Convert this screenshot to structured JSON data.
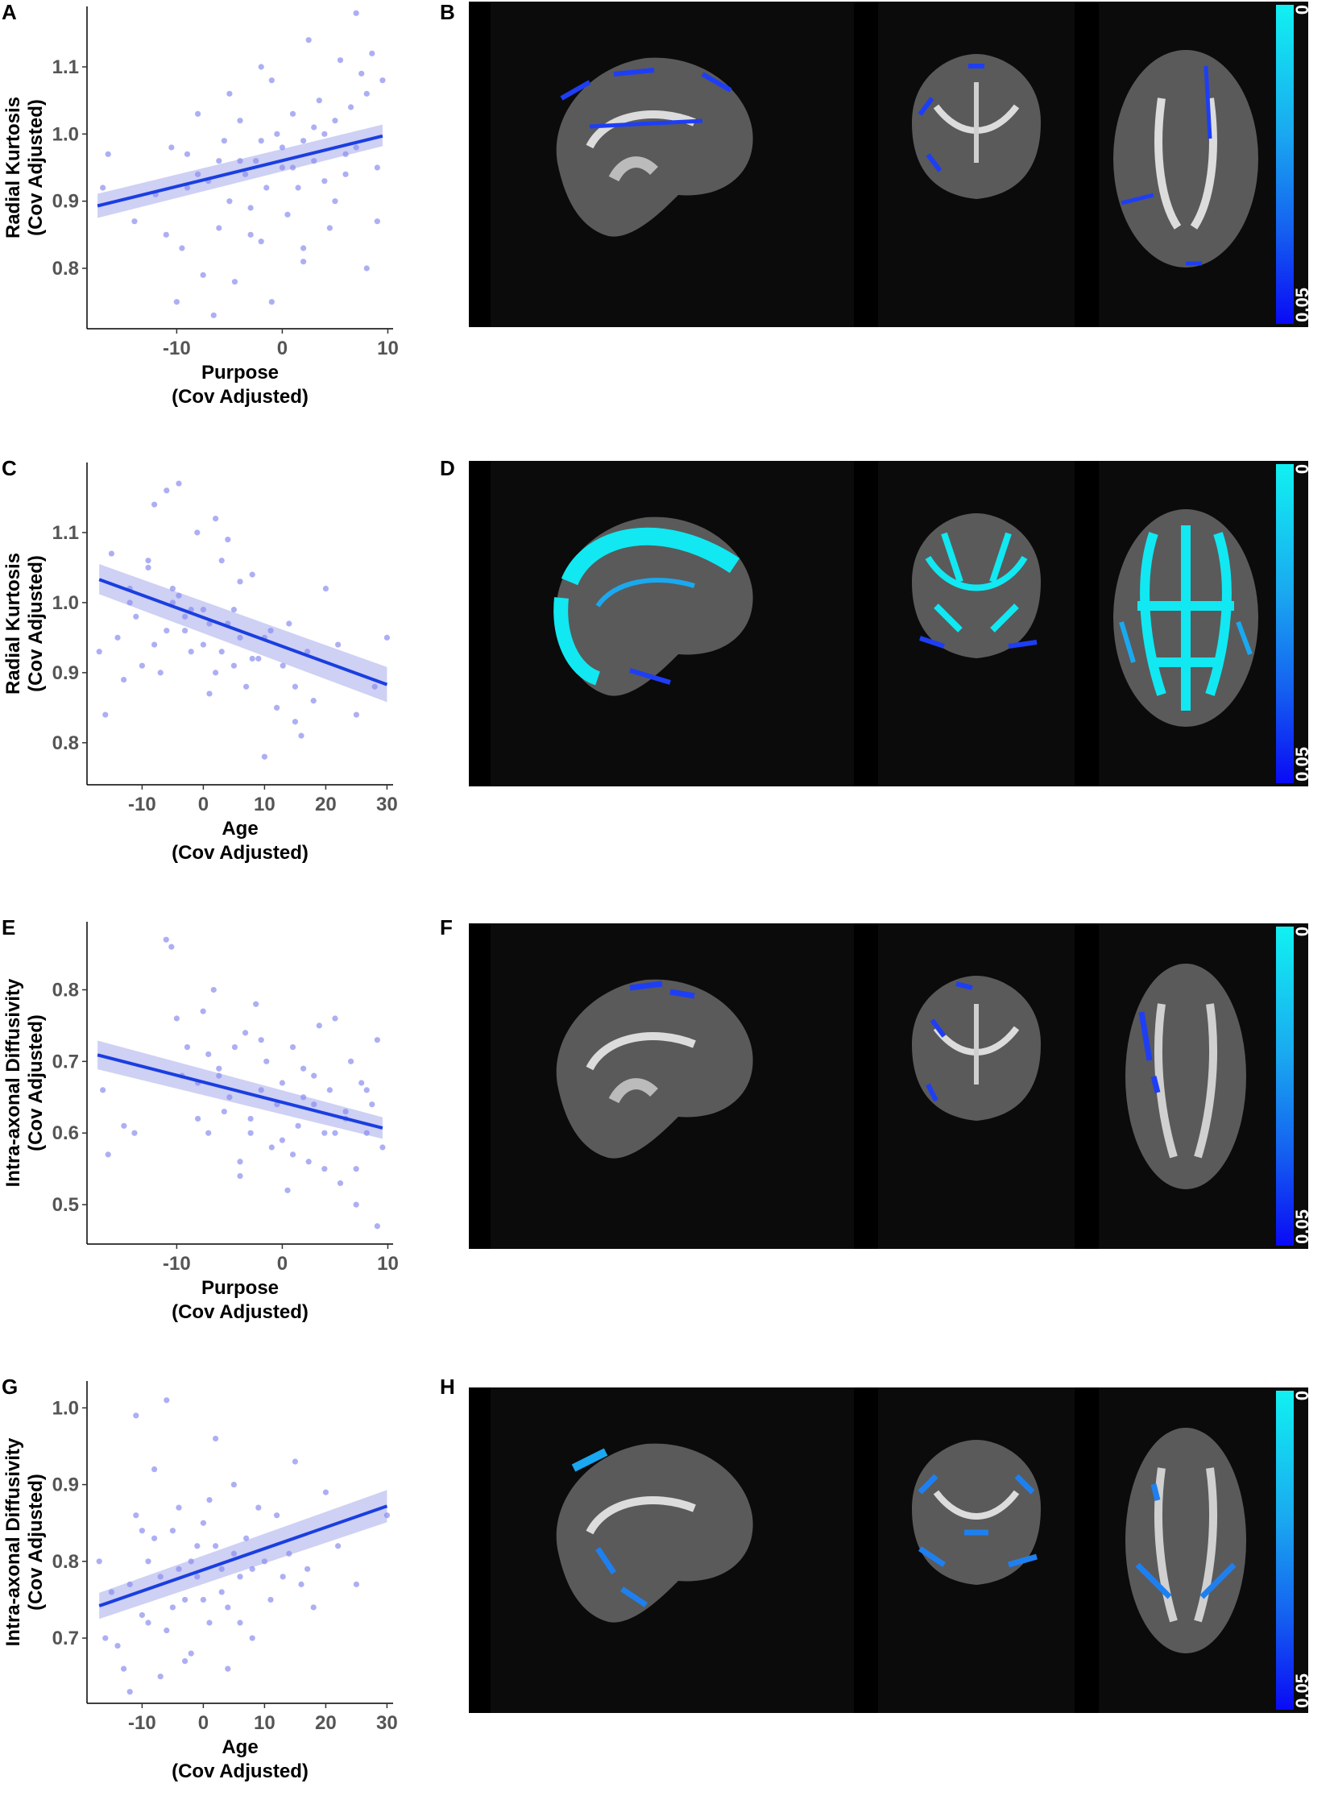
{
  "panels": {
    "A": "A",
    "B": "B",
    "C": "C",
    "D": "D",
    "E": "E",
    "F": "F",
    "G": "G",
    "H": "H"
  },
  "colorbar": {
    "top_label": "0",
    "bottom_label": "0.05",
    "top_color": "#11f1f1",
    "bottom_color": "#0a0af5"
  },
  "colors": {
    "point": "#8a8df0",
    "line": "#1a3ee0",
    "band": "#c6c8f2",
    "slice_bg": "#0b0b0b"
  },
  "chart_data": [
    {
      "type": "scatter",
      "panel": "A",
      "xlabel": "Purpose",
      "xlabel2": "(Cov Adjusted)",
      "ylabel": "Radial Kurtosis",
      "ylabel2": "(Cov Adjusted)",
      "xlim": [
        -18.5,
        10.5
      ],
      "ylim": [
        0.71,
        1.19
      ],
      "xticks": [
        -10,
        0,
        10
      ],
      "xtick_labels": [
        "-10",
        "0",
        "10"
      ],
      "yticks": [
        0.8,
        0.9,
        1.0,
        1.1
      ],
      "ytick_labels": [
        "0.8",
        "0.9",
        "1.0",
        "1.1"
      ],
      "fit": {
        "x": [
          -17.5,
          9.5
        ],
        "y": [
          0.893,
          0.997
        ],
        "se_low": [
          0.875,
          0.982
        ],
        "se_high": [
          0.911,
          1.014
        ]
      },
      "points": {
        "x": [
          -17,
          -16.5,
          -14,
          -12,
          -11,
          -10.5,
          -10,
          -9.5,
          -9,
          -8,
          -7.5,
          -7,
          -6.5,
          -6,
          -5.5,
          -5,
          -4.5,
          -4,
          -3.5,
          -3,
          -2.5,
          -2,
          -1.5,
          -1,
          -0.5,
          0,
          0.5,
          1,
          1.5,
          2,
          2.5,
          3,
          3.5,
          4,
          4.5,
          5,
          5.5,
          6,
          6.5,
          7,
          7.5,
          8,
          8.5,
          9,
          9.5,
          -9,
          -8,
          -6,
          -4,
          -2,
          0,
          2,
          4,
          6,
          8,
          -5,
          -3,
          -1,
          1,
          3,
          5,
          7,
          9,
          -2,
          2
        ],
        "y": [
          0.92,
          0.97,
          0.87,
          0.91,
          0.85,
          0.98,
          0.75,
          0.83,
          0.97,
          0.94,
          0.79,
          0.93,
          0.73,
          0.96,
          0.99,
          0.9,
          0.78,
          1.02,
          0.94,
          0.85,
          0.96,
          1.1,
          0.92,
          0.75,
          1.0,
          0.95,
          0.88,
          1.03,
          0.92,
          0.99,
          1.14,
          0.96,
          1.05,
          1.0,
          0.86,
          1.02,
          1.11,
          0.94,
          1.04,
          0.98,
          1.09,
          1.06,
          1.12,
          0.95,
          1.08,
          0.92,
          1.03,
          0.86,
          0.96,
          0.84,
          0.98,
          0.81,
          0.93,
          0.97,
          0.8,
          1.06,
          0.89,
          1.08,
          0.95,
          1.01,
          0.9,
          1.18,
          0.87,
          0.99,
          0.83
        ]
      }
    },
    {
      "type": "scatter",
      "panel": "C",
      "xlabel": "Age",
      "xlabel2": "(Cov Adjusted)",
      "ylabel": "Radial Kurtosis",
      "ylabel2": "(Cov Adjusted)",
      "xlim": [
        -19,
        31
      ],
      "ylim": [
        0.74,
        1.2
      ],
      "xticks": [
        -10,
        0,
        10,
        20,
        30
      ],
      "xtick_labels": [
        "-10",
        "0",
        "10",
        "20",
        "30"
      ],
      "yticks": [
        0.8,
        0.9,
        1.0,
        1.1
      ],
      "ytick_labels": [
        "0.8",
        "0.9",
        "1.0",
        "1.1"
      ],
      "fit": {
        "x": [
          -17,
          30
        ],
        "y": [
          1.033,
          0.883
        ],
        "se_low": [
          1.012,
          0.858
        ],
        "se_high": [
          1.055,
          0.908
        ]
      },
      "points": {
        "x": [
          -17,
          -16,
          -15,
          -14,
          -13,
          -12,
          -11,
          -10,
          -9,
          -8,
          -7,
          -6,
          -5,
          -4,
          -3,
          -2,
          -1,
          0,
          1,
          2,
          3,
          4,
          5,
          6,
          7,
          8,
          9,
          10,
          11,
          12,
          13,
          14,
          15,
          16,
          17,
          18,
          20,
          22,
          25,
          28,
          30,
          -12,
          -9,
          -6,
          -4,
          -2,
          0,
          2,
          4,
          6,
          8,
          -8,
          -5,
          -3,
          1,
          3,
          5,
          10,
          15
        ],
        "y": [
          0.93,
          0.84,
          1.07,
          0.95,
          0.89,
          1.02,
          0.98,
          0.91,
          1.06,
          1.14,
          0.9,
          1.16,
          1.0,
          1.17,
          0.96,
          0.99,
          1.1,
          0.94,
          0.87,
          1.12,
          0.93,
          1.09,
          0.99,
          0.95,
          0.88,
          1.04,
          0.92,
          0.78,
          0.96,
          0.85,
          0.91,
          0.97,
          0.88,
          0.81,
          0.93,
          0.86,
          1.02,
          0.94,
          0.84,
          0.88,
          0.95,
          1.0,
          1.05,
          0.96,
          1.01,
          0.93,
          0.99,
          0.9,
          0.97,
          1.03,
          0.92,
          0.94,
          1.02,
          0.98,
          0.97,
          1.06,
          0.91,
          0.95,
          0.83
        ]
      }
    },
    {
      "type": "scatter",
      "panel": "E",
      "xlabel": "Purpose",
      "xlabel2": "(Cov Adjusted)",
      "ylabel": "Intra-axonal Diffusivity",
      "ylabel2": "(Cov Adjusted)",
      "xlim": [
        -18.5,
        10.5
      ],
      "ylim": [
        0.445,
        0.895
      ],
      "xticks": [
        -10,
        0,
        10
      ],
      "xtick_labels": [
        "-10",
        "0",
        "10"
      ],
      "yticks": [
        0.5,
        0.6,
        0.7,
        0.8
      ],
      "ytick_labels": [
        "0.5",
        "0.6",
        "0.7",
        "0.8"
      ],
      "fit": {
        "x": [
          -17.5,
          9.5
        ],
        "y": [
          0.709,
          0.607
        ],
        "se_low": [
          0.689,
          0.592
        ],
        "se_high": [
          0.729,
          0.622
        ]
      },
      "points": {
        "x": [
          -17,
          -16.5,
          -15,
          -14,
          -11,
          -10.5,
          -10,
          -9.5,
          -9,
          -8,
          -7.5,
          -7,
          -6.5,
          -6,
          -5.5,
          -5,
          -4.5,
          -4,
          -3.5,
          -3,
          -2.5,
          -2,
          -1.5,
          -1,
          -0.5,
          0,
          0.5,
          1,
          1.5,
          2,
          2.5,
          3,
          3.5,
          4,
          4.5,
          5,
          5.5,
          6,
          6.5,
          7,
          7.5,
          8,
          8.5,
          9,
          9.5,
          -8,
          -6,
          -4,
          -2,
          0,
          2,
          4,
          6,
          8,
          -7,
          -3,
          1,
          3,
          5,
          7,
          9
        ],
        "y": [
          0.66,
          0.57,
          0.61,
          0.6,
          0.87,
          0.86,
          0.76,
          0.68,
          0.72,
          0.67,
          0.77,
          0.6,
          0.8,
          0.69,
          0.63,
          0.65,
          0.72,
          0.54,
          0.74,
          0.6,
          0.78,
          0.66,
          0.7,
          0.58,
          0.64,
          0.67,
          0.52,
          0.72,
          0.61,
          0.69,
          0.56,
          0.64,
          0.75,
          0.6,
          0.66,
          0.76,
          0.53,
          0.63,
          0.7,
          0.5,
          0.67,
          0.6,
          0.64,
          0.47,
          0.58,
          0.62,
          0.68,
          0.56,
          0.73,
          0.59,
          0.65,
          0.55,
          0.62,
          0.66,
          0.71,
          0.62,
          0.57,
          0.68,
          0.6,
          0.55,
          0.73
        ]
      }
    },
    {
      "type": "scatter",
      "panel": "G",
      "xlabel": "Age",
      "xlabel2": "(Cov Adjusted)",
      "ylabel": "Intra-axonal Diffusivity",
      "ylabel2": "(Cov Adjusted)",
      "xlim": [
        -19,
        31
      ],
      "ylim": [
        0.615,
        1.035
      ],
      "xticks": [
        -10,
        0,
        10,
        20,
        30
      ],
      "xtick_labels": [
        "-10",
        "0",
        "10",
        "20",
        "30"
      ],
      "yticks": [
        0.7,
        0.8,
        0.9,
        1.0
      ],
      "ytick_labels": [
        "0.7",
        "0.8",
        "0.9",
        "1.0"
      ],
      "fit": {
        "x": [
          -17,
          30
        ],
        "y": [
          0.742,
          0.872
        ],
        "se_low": [
          0.725,
          0.851
        ],
        "se_high": [
          0.759,
          0.893
        ]
      },
      "points": {
        "x": [
          -17,
          -16,
          -15,
          -14,
          -13,
          -12,
          -11,
          -10,
          -9,
          -8,
          -7,
          -6,
          -5,
          -4,
          -3,
          -2,
          -1,
          0,
          1,
          2,
          3,
          4,
          5,
          6,
          7,
          8,
          9,
          10,
          11,
          12,
          13,
          14,
          15,
          16,
          17,
          18,
          20,
          22,
          25,
          30,
          -12,
          -10,
          -8,
          -6,
          -4,
          -2,
          0,
          2,
          4,
          6,
          -11,
          -9,
          -7,
          -5,
          -3,
          -1,
          1,
          3,
          5,
          8
        ],
        "y": [
          0.8,
          0.7,
          0.76,
          0.69,
          0.66,
          0.63,
          0.99,
          0.84,
          0.72,
          0.92,
          0.65,
          1.01,
          0.74,
          0.87,
          0.67,
          0.8,
          0.78,
          0.85,
          0.72,
          0.96,
          0.79,
          0.66,
          0.9,
          0.78,
          0.83,
          0.7,
          0.87,
          0.8,
          0.75,
          0.86,
          0.78,
          0.81,
          0.93,
          0.77,
          0.79,
          0.74,
          0.89,
          0.82,
          0.77,
          0.86,
          0.77,
          0.73,
          0.83,
          0.71,
          0.79,
          0.68,
          0.75,
          0.82,
          0.74,
          0.72,
          0.86,
          0.8,
          0.78,
          0.84,
          0.75,
          0.82,
          0.88,
          0.76,
          0.81,
          0.79
        ]
      }
    }
  ]
}
